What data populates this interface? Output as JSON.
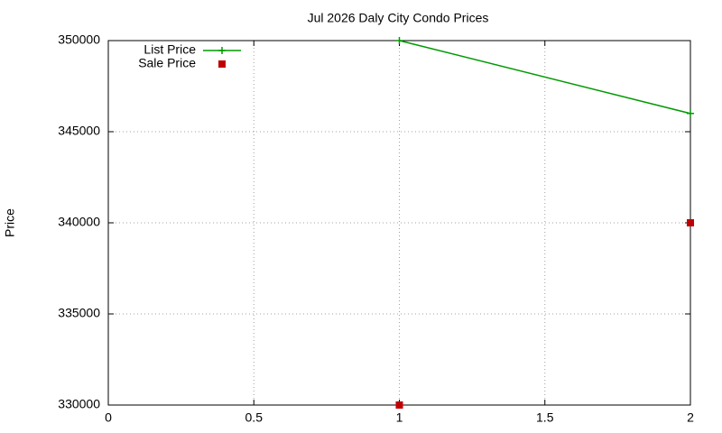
{
  "chart_data": {
    "type": "line",
    "title": "Jul 2026 Daly City Condo Prices",
    "ylabel": "Price",
    "series": [
      {
        "name": "List Price",
        "color": "#009900",
        "mode": "lines+markers",
        "marker": "plus",
        "x": [
          1,
          2
        ],
        "values": [
          350000,
          346000
        ]
      },
      {
        "name": "Sale Price",
        "color": "#c00000",
        "mode": "markers",
        "marker": "square",
        "x": [
          1,
          2
        ],
        "values": [
          330000,
          340000
        ]
      }
    ],
    "xlim": [
      0,
      2
    ],
    "xticks": [
      0,
      0.5,
      1,
      1.5,
      2
    ],
    "ylim": [
      330000,
      350000
    ],
    "yticks": [
      330000,
      335000,
      340000,
      345000,
      350000
    ],
    "grid": true,
    "legend": "top-left"
  }
}
